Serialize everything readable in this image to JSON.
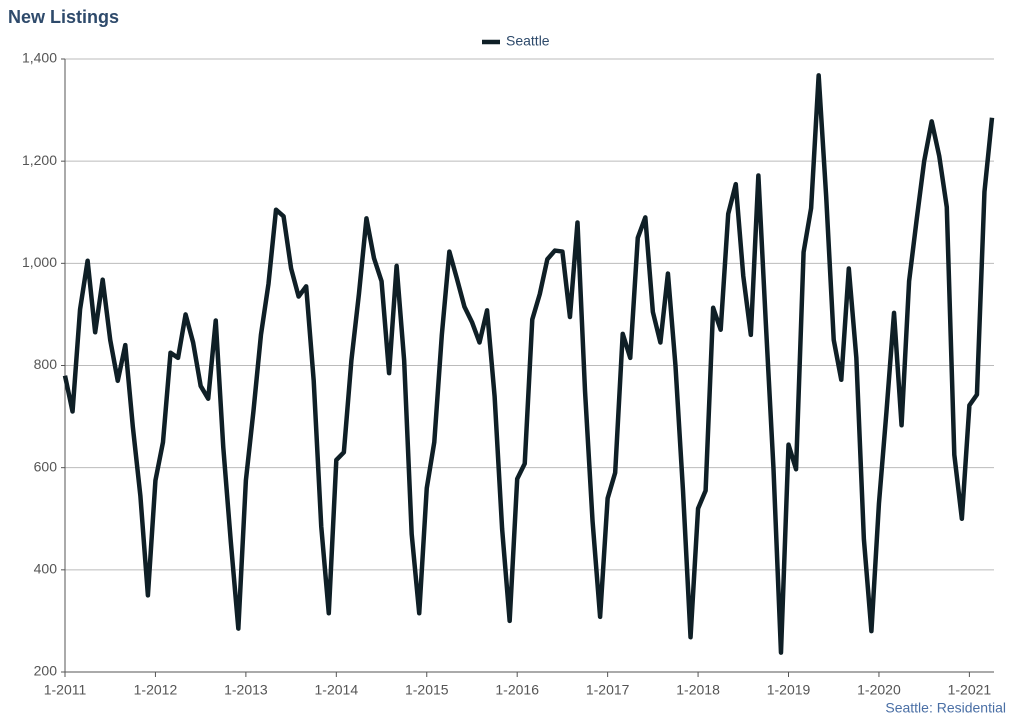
{
  "chart_data": {
    "type": "line",
    "title": "New Listings",
    "source": "Seattle: Residential",
    "categories": [
      "1-2011",
      null,
      null,
      null,
      null,
      null,
      null,
      null,
      null,
      null,
      null,
      null,
      "1-2012",
      null,
      null,
      null,
      null,
      null,
      null,
      null,
      null,
      null,
      null,
      null,
      "1-2013",
      null,
      null,
      null,
      null,
      null,
      null,
      null,
      null,
      null,
      null,
      null,
      "1-2014",
      null,
      null,
      null,
      null,
      null,
      null,
      null,
      null,
      null,
      null,
      null,
      "1-2015",
      null,
      null,
      null,
      null,
      null,
      null,
      null,
      null,
      null,
      null,
      null,
      "1-2016",
      null,
      null,
      null,
      null,
      null,
      null,
      null,
      null,
      null,
      null,
      null,
      "1-2017",
      null,
      null,
      null,
      null,
      null,
      null,
      null,
      null,
      null,
      null,
      null,
      "1-2018",
      null,
      null,
      null,
      null,
      null,
      null,
      null,
      null,
      null,
      null,
      null,
      "1-2019",
      null,
      null,
      null,
      null,
      null,
      null,
      null,
      null,
      null,
      null,
      null,
      "1-2020",
      null,
      null,
      null,
      null,
      null,
      null,
      null,
      null,
      null,
      null,
      null,
      "1-2021",
      null,
      null,
      null
    ],
    "series": [
      {
        "name": "Seattle",
        "color": "#0f1f26",
        "values": [
          780,
          710,
          910,
          1005,
          865,
          968,
          850,
          770,
          840,
          680,
          545,
          350,
          575,
          650,
          825,
          815,
          900,
          845,
          760,
          735,
          888,
          640,
          455,
          285,
          575,
          710,
          860,
          960,
          1105,
          1092,
          990,
          935,
          955,
          770,
          485,
          315,
          615,
          630,
          810,
          940,
          1088,
          1010,
          965,
          785,
          995,
          810,
          470,
          315,
          560,
          650,
          860,
          1023,
          970,
          915,
          885,
          845,
          908,
          740,
          480,
          300,
          578,
          608,
          890,
          940,
          1008,
          1025,
          1023,
          895,
          1080,
          750,
          495,
          308,
          540,
          590,
          862,
          815,
          1050,
          1090,
          905,
          845,
          980,
          800,
          555,
          268,
          520,
          555,
          913,
          870,
          1097,
          1155,
          975,
          860,
          1172,
          880,
          600,
          238,
          645,
          597,
          1022,
          1108,
          1368,
          1130,
          850,
          772,
          990,
          815,
          460,
          280,
          530,
          710,
          903,
          683,
          965,
          1085,
          1200,
          1278,
          1210,
          1110,
          625,
          500,
          722,
          743,
          1140,
          1285
        ]
      }
    ],
    "ylim": [
      200,
      1400
    ],
    "yticks": [
      200,
      400,
      600,
      800,
      {
        "value": 1000,
        "label": "1,000"
      },
      {
        "value": 1200,
        "label": "1,200"
      },
      {
        "value": 1400,
        "label": "1,400"
      }
    ],
    "grid": true,
    "legend": "top"
  }
}
